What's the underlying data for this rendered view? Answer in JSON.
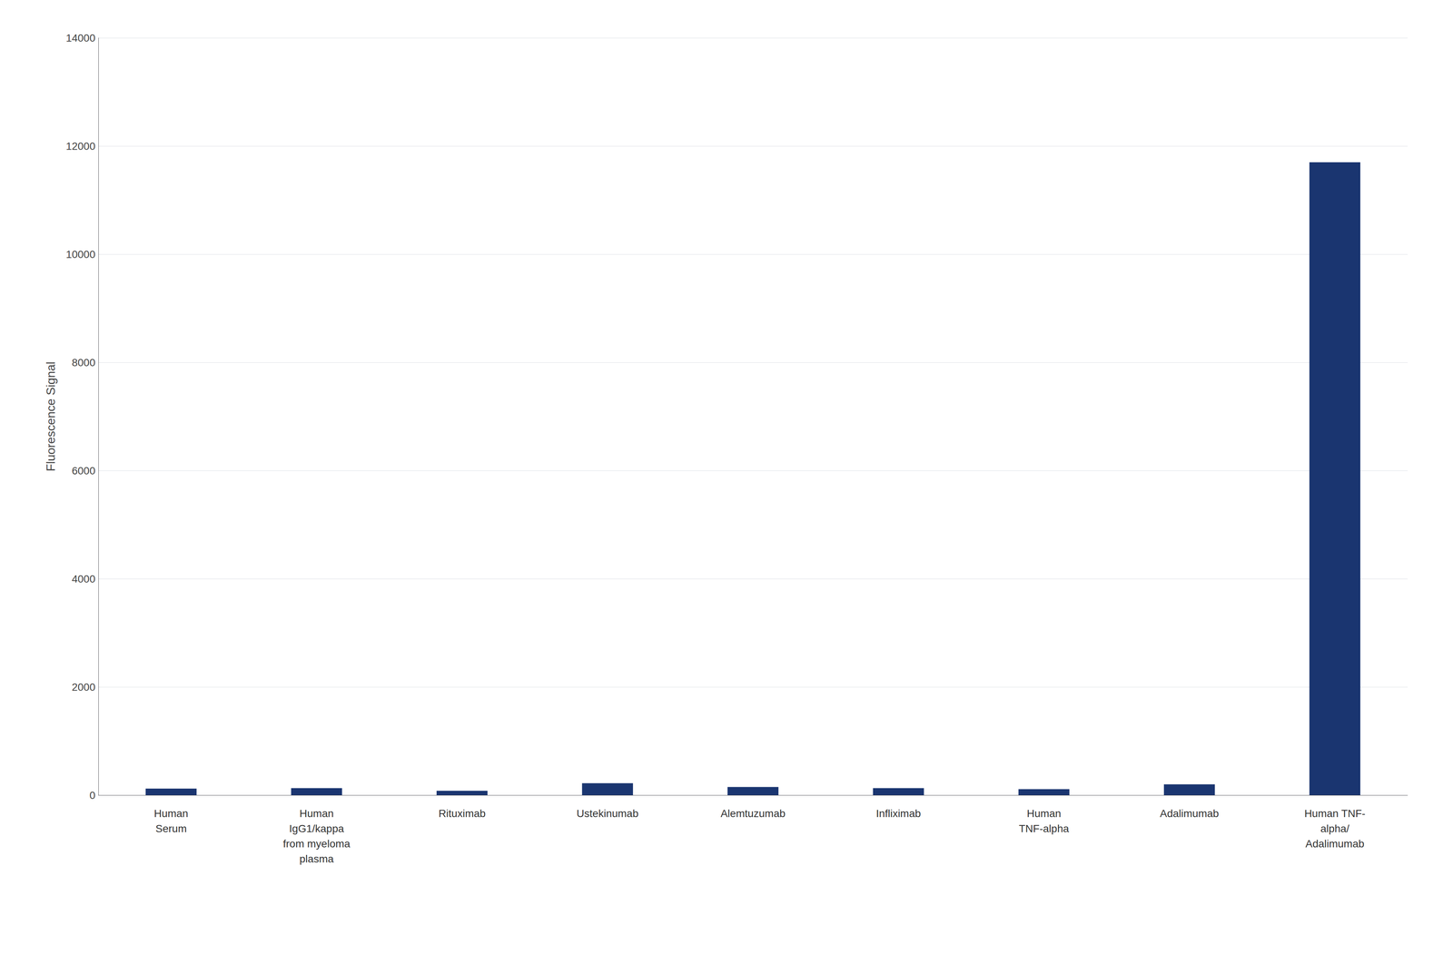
{
  "chart_data": {
    "type": "bar",
    "categories": [
      "Human\nSerum",
      "Human\nIgG1/kappa\nfrom myeloma\nplasma",
      "Rituximab",
      "Ustekinumab",
      "Alemtuzumab",
      "Infliximab",
      "Human\nTNF-alpha",
      "Adalimumab",
      "Human TNF-\nalpha/\nAdalimumab"
    ],
    "values": [
      120,
      130,
      80,
      220,
      150,
      130,
      110,
      200,
      11700
    ],
    "color": "#1a3570",
    "ylabel": "Fluorescence Signal",
    "ylim": [
      0,
      14000
    ],
    "yticks": [
      0,
      2000,
      4000,
      6000,
      8000,
      10000,
      12000,
      14000
    ],
    "grid": true
  }
}
